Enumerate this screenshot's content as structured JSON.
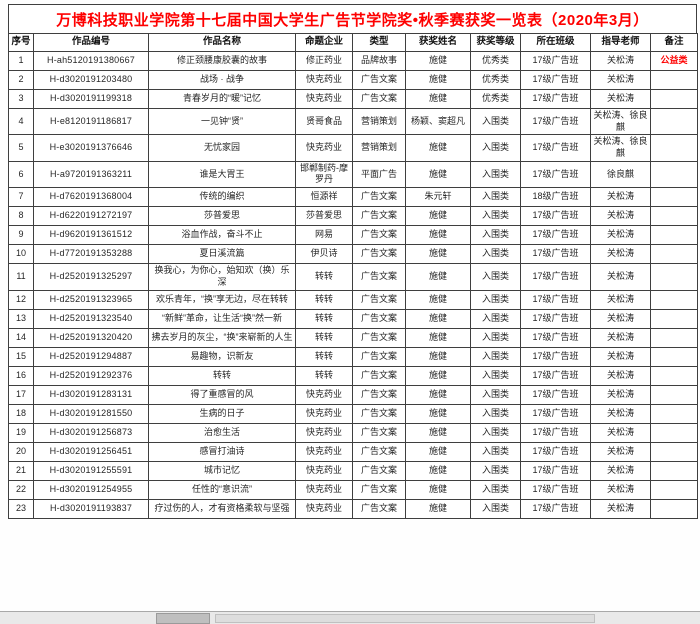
{
  "title": "万博科技职业学院第十七届中国大学生广告节学院奖•秋季赛获奖一览表（2020年3月）",
  "title_color": "#fe0000",
  "note_color": "#fe0000",
  "columns": [
    {
      "key": "no",
      "label": "序号"
    },
    {
      "key": "id",
      "label": "作品编号"
    },
    {
      "key": "title",
      "label": "作品名称"
    },
    {
      "key": "company",
      "label": "命题企业"
    },
    {
      "key": "type",
      "label": "类型"
    },
    {
      "key": "winner",
      "label": "获奖姓名"
    },
    {
      "key": "grade",
      "label": "获奖等级"
    },
    {
      "key": "class",
      "label": "所在班级"
    },
    {
      "key": "teacher",
      "label": "指导老师"
    },
    {
      "key": "note",
      "label": "备注"
    }
  ],
  "rows": [
    {
      "no": "1",
      "id": "H-ah5120191380667",
      "title": "修正颈腰康胶囊的故事",
      "company": "修正药业",
      "type": "品牌故事",
      "winner": "施健",
      "grade": "优秀类",
      "class": "17级广告班",
      "teacher": "关松涛",
      "note": "公益类"
    },
    {
      "no": "2",
      "id": "H-d3020191203480",
      "title": "战场 · 战争",
      "company": "快克药业",
      "type": "广告文案",
      "winner": "施健",
      "grade": "优秀类",
      "class": "17级广告班",
      "teacher": "关松涛",
      "note": ""
    },
    {
      "no": "3",
      "id": "H-d3020191199318",
      "title": "青春岁月的“暖”记忆",
      "company": "快克药业",
      "type": "广告文案",
      "winner": "施健",
      "grade": "优秀类",
      "class": "17级广告班",
      "teacher": "关松涛",
      "note": ""
    },
    {
      "no": "4",
      "id": "H-e8120191186817",
      "title": "一见钟“贤”",
      "company": "贤哥食品",
      "type": "营销策划",
      "winner": "杨颖、窦超凡",
      "grade": "入围类",
      "class": "17级广告班",
      "teacher": "关松涛、徐良麒",
      "note": ""
    },
    {
      "no": "5",
      "id": "H-e3020191376646",
      "title": "无忧家园",
      "company": "快克药业",
      "type": "营销策划",
      "winner": "施健",
      "grade": "入围类",
      "class": "17级广告班",
      "teacher": "关松涛、徐良麒",
      "note": ""
    },
    {
      "no": "6",
      "id": "H-a9720191363211",
      "title": "谁是大胃王",
      "company": "邯郸制药-摩罗丹",
      "type": "平面广告",
      "winner": "施健",
      "grade": "入围类",
      "class": "17级广告班",
      "teacher": "徐良麒",
      "note": ""
    },
    {
      "no": "7",
      "id": "H-d7620191368004",
      "title": "传统的编织",
      "company": "恒源祥",
      "type": "广告文案",
      "winner": "朱元轩",
      "grade": "入围类",
      "class": "18级广告班",
      "teacher": "关松涛",
      "note": ""
    },
    {
      "no": "8",
      "id": "H-d6220191272197",
      "title": "莎普爱思",
      "company": "莎普爱思",
      "type": "广告文案",
      "winner": "施健",
      "grade": "入围类",
      "class": "17级广告班",
      "teacher": "关松涛",
      "note": ""
    },
    {
      "no": "9",
      "id": "H-d9620191361512",
      "title": "浴血作战，奋斗不止",
      "company": "网易",
      "type": "广告文案",
      "winner": "施健",
      "grade": "入围类",
      "class": "17级广告班",
      "teacher": "关松涛",
      "note": ""
    },
    {
      "no": "10",
      "id": "H-d7720191353288",
      "title": "夏日溪流篇",
      "company": "伊贝诗",
      "type": "广告文案",
      "winner": "施健",
      "grade": "入围类",
      "class": "17级广告班",
      "teacher": "关松涛",
      "note": ""
    },
    {
      "no": "11",
      "id": "H-d2520191325297",
      "title": "换我心，为你心，始知欢（换）乐深",
      "company": "转转",
      "type": "广告文案",
      "winner": "施健",
      "grade": "入围类",
      "class": "17级广告班",
      "teacher": "关松涛",
      "note": ""
    },
    {
      "no": "12",
      "id": "H-d2520191323965",
      "title": "欢乐青年，“换”享无边，尽在转转",
      "company": "转转",
      "type": "广告文案",
      "winner": "施健",
      "grade": "入围类",
      "class": "17级广告班",
      "teacher": "关松涛",
      "note": ""
    },
    {
      "no": "13",
      "id": "H-d2520191323540",
      "title": "“新鲜”革命，让生活“换”然一新",
      "company": "转转",
      "type": "广告文案",
      "winner": "施健",
      "grade": "入围类",
      "class": "17级广告班",
      "teacher": "关松涛",
      "note": ""
    },
    {
      "no": "14",
      "id": "H-d2520191320420",
      "title": "拂去岁月的灰尘，“换”来崭新的人生",
      "company": "转转",
      "type": "广告文案",
      "winner": "施健",
      "grade": "入围类",
      "class": "17级广告班",
      "teacher": "关松涛",
      "note": ""
    },
    {
      "no": "15",
      "id": "H-d2520191294887",
      "title": "易趣物，识新友",
      "company": "转转",
      "type": "广告文案",
      "winner": "施健",
      "grade": "入围类",
      "class": "17级广告班",
      "teacher": "关松涛",
      "note": ""
    },
    {
      "no": "16",
      "id": "H-d2520191292376",
      "title": "转转",
      "company": "转转",
      "type": "广告文案",
      "winner": "施健",
      "grade": "入围类",
      "class": "17级广告班",
      "teacher": "关松涛",
      "note": ""
    },
    {
      "no": "17",
      "id": "H-d3020191283131",
      "title": "得了重感冒的风",
      "company": "快克药业",
      "type": "广告文案",
      "winner": "施健",
      "grade": "入围类",
      "class": "17级广告班",
      "teacher": "关松涛",
      "note": ""
    },
    {
      "no": "18",
      "id": "H-d3020191281550",
      "title": "生病的日子",
      "company": "快克药业",
      "type": "广告文案",
      "winner": "施健",
      "grade": "入围类",
      "class": "17级广告班",
      "teacher": "关松涛",
      "note": ""
    },
    {
      "no": "19",
      "id": "H-d3020191256873",
      "title": "治愈生活",
      "company": "快克药业",
      "type": "广告文案",
      "winner": "施健",
      "grade": "入围类",
      "class": "17级广告班",
      "teacher": "关松涛",
      "note": ""
    },
    {
      "no": "20",
      "id": "H-d3020191256451",
      "title": "感冒打油诗",
      "company": "快克药业",
      "type": "广告文案",
      "winner": "施健",
      "grade": "入围类",
      "class": "17级广告班",
      "teacher": "关松涛",
      "note": ""
    },
    {
      "no": "21",
      "id": "H-d3020191255591",
      "title": "城市记忆",
      "company": "快克药业",
      "type": "广告文案",
      "winner": "施健",
      "grade": "入围类",
      "class": "17级广告班",
      "teacher": "关松涛",
      "note": ""
    },
    {
      "no": "22",
      "id": "H-d3020191254955",
      "title": "任性的“意识流”",
      "company": "快克药业",
      "type": "广告文案",
      "winner": "施健",
      "grade": "入围类",
      "class": "17级广告班",
      "teacher": "关松涛",
      "note": ""
    },
    {
      "no": "23",
      "id": "H-d3020191193837",
      "title": "疗过伤的人，才有资格柔软与坚强",
      "company": "快克药业",
      "type": "广告文案",
      "winner": "施健",
      "grade": "入围类",
      "class": "17级广告班",
      "teacher": "关松涛",
      "note": ""
    }
  ]
}
